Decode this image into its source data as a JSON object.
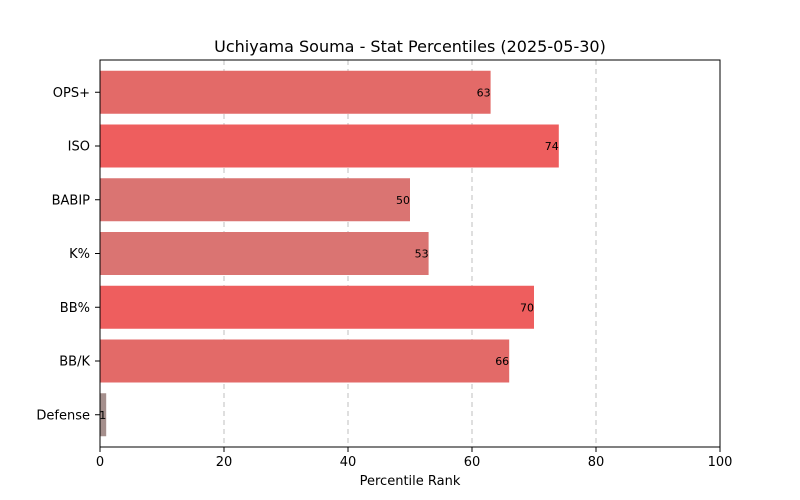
{
  "chart_data": {
    "type": "bar",
    "orientation": "horizontal",
    "title": "Uchiyama Souma - Stat Percentiles (2025-05-30)",
    "xlabel": "Percentile Rank",
    "ylabel": "",
    "xlim": [
      0,
      100
    ],
    "xticks": [
      0,
      20,
      40,
      60,
      80,
      100
    ],
    "grid": "x-dashed",
    "categories": [
      "OPS+",
      "ISO",
      "BABIP",
      "K%",
      "BB%",
      "BB/K",
      "Defense"
    ],
    "values": [
      63,
      74,
      50,
      53,
      70,
      66,
      1
    ],
    "colors": [
      "#e36a68",
      "#ee5e5e",
      "#da7472",
      "#da7472",
      "#ee5e5e",
      "#e36a68",
      "#a58f8c"
    ],
    "data_labels": [
      "63",
      "74",
      "50",
      "53",
      "70",
      "66",
      "1"
    ]
  }
}
